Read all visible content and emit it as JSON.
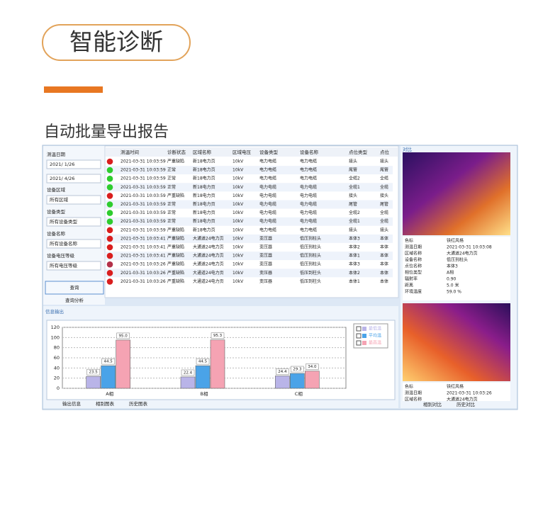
{
  "header": {
    "title": "智能诊断",
    "subtitle": "自动批量导出报告"
  },
  "filters": {
    "date_label": "测温日期",
    "date_from": "2021/ 1/26",
    "date_to": "2021/ 4/26",
    "fields": [
      {
        "label": "设备区域",
        "value": "所有区域"
      },
      {
        "label": "设备类型",
        "value": "所有设备类型"
      },
      {
        "label": "设备名称",
        "value": "所有设备名称"
      },
      {
        "label": "设备电压等级",
        "value": "所有电压等级"
      }
    ],
    "query_button": "查询",
    "tab": "查询分析"
  },
  "table": {
    "columns": [
      "测温时间",
      "诊断状态",
      "区域名称",
      "区域电压",
      "设备类型",
      "设备名称",
      "点位类型",
      "点位"
    ],
    "status_colors": [
      "#d91e1e",
      "#2ecc2e",
      "#2ecc2e",
      "#2ecc2e",
      "#d91e1e",
      "#2ecc2e",
      "#2ecc2e",
      "#2ecc2e",
      "#d91e1e",
      "#d91e1e",
      "#d91e1e",
      "#d91e1e",
      "#b3324a",
      "#d91e1e",
      "#d91e1e"
    ],
    "rows": [
      [
        "2021-03-31 10:03:59",
        "严重缺陷",
        "新18电力页",
        "10kV",
        "电力电缆",
        "电力电缆",
        "接头",
        "接头"
      ],
      [
        "2021-03-31 10:03:59",
        "正常",
        "新18电力页",
        "10kV",
        "电力电缆",
        "电力电缆",
        "尾管",
        "尾管"
      ],
      [
        "2021-03-31 10:03:59",
        "正常",
        "新18电力页",
        "10kV",
        "电力电缆",
        "电力电缆",
        "全缆2",
        "全缆"
      ],
      [
        "2021-03-31 10:03:59",
        "正常",
        "新18电力页",
        "10kV",
        "电力电缆",
        "电力电缆",
        "全缆1",
        "全缆"
      ],
      [
        "2021-03-31 10:03:59",
        "严重缺陷",
        "新18电力页",
        "10kV",
        "电力电缆",
        "电力电缆",
        "接头",
        "接头"
      ],
      [
        "2021-03-31 10:03:59",
        "正常",
        "新18电力页",
        "10kV",
        "电力电缆",
        "电力电缆",
        "尾管",
        "尾管"
      ],
      [
        "2021-03-31 10:03:59",
        "正常",
        "新18电力页",
        "10kV",
        "电力电缆",
        "电力电缆",
        "全缆2",
        "全缆"
      ],
      [
        "2021-03-31 10:03:59",
        "正常",
        "新18电力页",
        "10kV",
        "电力电缆",
        "电力电缆",
        "全缆1",
        "全缆"
      ],
      [
        "2021-03-31 10:03:59",
        "严重缺陷",
        "新18电力页",
        "10kV",
        "电力电缆",
        "电力电缆",
        "接头",
        "接头"
      ],
      [
        "2021-03-31 10:03:41",
        "严重缺陷",
        "大通道24电力页",
        "10kV",
        "变压器",
        "低压到柱头",
        "本体3",
        "本体"
      ],
      [
        "2021-03-31 10:03:41",
        "严重缺陷",
        "大通道24电力页",
        "10kV",
        "变压器",
        "低压到柱头",
        "本体2",
        "本体"
      ],
      [
        "2021-03-31 10:03:41",
        "严重缺陷",
        "大通道24电力页",
        "10kV",
        "变压器",
        "低压到柱头",
        "本体1",
        "本体"
      ],
      [
        "2021-03-31 10:03:26",
        "严重缺陷",
        "大通道24电力页",
        "10kV",
        "变压器",
        "低压到柱头",
        "本体3",
        "本体"
      ],
      [
        "2021-03-31 10:03:26",
        "严重缺陷",
        "大通道24电力页",
        "10kV",
        "变压器",
        "低压到柱头",
        "本体2",
        "本体"
      ],
      [
        "2021-03-31 10:03:26",
        "严重缺陷",
        "大通道24电力页",
        "10kV",
        "变压器",
        "低压到柱头",
        "本体1",
        "本体"
      ]
    ]
  },
  "output": {
    "title": "信息输出",
    "tabs": [
      "输出信息",
      "相别图表",
      "历史图表"
    ]
  },
  "chart_data": {
    "type": "bar",
    "categories": [
      "A相",
      "B相",
      "C相"
    ],
    "series": [
      {
        "name": "最低温",
        "color": "#b9b4e8",
        "values": [
          23.5,
          22.4,
          24.4
        ],
        "value_labels": [
          "23.5",
          "22.4",
          "24.4"
        ]
      },
      {
        "name": "平均温",
        "color": "#4aa3e8",
        "values": [
          44.5,
          44.5,
          29.3
        ],
        "value_labels": [
          "44.5",
          "44.5",
          "29.3"
        ]
      },
      {
        "name": "最高温",
        "color": "#f5a3b3",
        "values": [
          95,
          95.3,
          34
        ],
        "value_labels": [
          "95.0",
          "95.3",
          "34.0"
        ]
      }
    ],
    "ylim": [
      0,
      120
    ],
    "yticks": [
      0,
      20,
      40,
      60,
      80,
      100,
      120
    ],
    "grid": true
  },
  "compare": {
    "title": "对比",
    "props1": [
      [
        "色标",
        "铁红风格"
      ],
      [
        "测温日期",
        "2021-03-31 10:03:08"
      ],
      [
        "区域名称",
        "大通道24电力页"
      ],
      [
        "设备名称",
        "低压到柱头"
      ],
      [
        "点位名称",
        "本体3"
      ],
      [
        "相位类型",
        "A相"
      ],
      [
        "辐射率",
        "0.90"
      ],
      [
        "距离",
        "5.0 米"
      ],
      [
        "环境温度",
        "59.0 %"
      ]
    ],
    "props2": [
      [
        "色标",
        "铁红风格"
      ],
      [
        "测温日期",
        "2021-03-31 10:03:26"
      ],
      [
        "区域名称",
        "大通道24电力页"
      ]
    ],
    "tabs": [
      "相别对比",
      "历史对比"
    ]
  }
}
